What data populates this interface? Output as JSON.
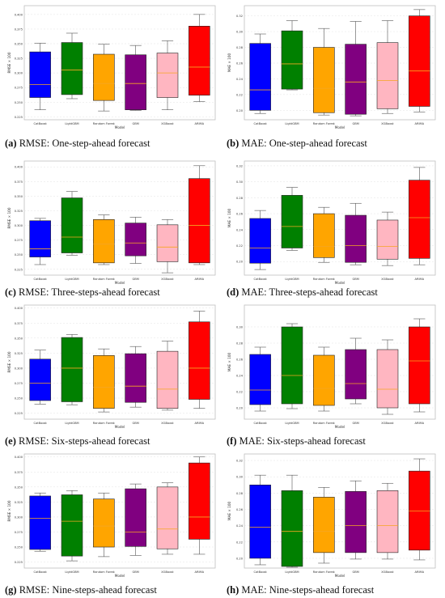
{
  "categories": [
    "CatBoost",
    "LightGBM",
    "Random Forest",
    "GBM",
    "XGBoost",
    "ARIMA"
  ],
  "colors": [
    "#0000ff",
    "#008000",
    "#ffa500",
    "#800080",
    "#ffb6c1",
    "#ff0000"
  ],
  "median_color": "#f5a623",
  "chart_data": [
    {
      "type": "box",
      "panel": "a",
      "caption_tag": "(a)",
      "caption_text": "RMSE: One-step-ahead forecast",
      "xlabel": "Model",
      "ylabel": "RMSE × 100",
      "ylim": [
        0.22,
        0.415
      ],
      "yticks": [
        0.225,
        0.25,
        0.275,
        0.3,
        0.325,
        0.35,
        0.375,
        0.4
      ],
      "ytick_labels": [
        "0.225",
        "0.250",
        "0.275",
        "0.300",
        "0.325",
        "0.350",
        "0.375",
        "0.400"
      ],
      "boxes": [
        {
          "min": 0.237,
          "q1": 0.258,
          "median": 0.28,
          "q3": 0.336,
          "max": 0.351
        },
        {
          "min": 0.256,
          "q1": 0.263,
          "median": 0.305,
          "q3": 0.352,
          "max": 0.368
        },
        {
          "min": 0.235,
          "q1": 0.253,
          "median": 0.282,
          "q3": 0.332,
          "max": 0.349
        },
        {
          "min": 0.236,
          "q1": 0.237,
          "median": 0.282,
          "q3": 0.331,
          "max": 0.347
        },
        {
          "min": 0.237,
          "q1": 0.258,
          "median": 0.3,
          "q3": 0.334,
          "max": 0.355
        },
        {
          "min": 0.251,
          "q1": 0.262,
          "median": 0.31,
          "q3": 0.38,
          "max": 0.4
        }
      ]
    },
    {
      "type": "box",
      "panel": "b",
      "caption_tag": "(b)",
      "caption_text": "MAE: One-step-ahead forecast",
      "xlabel": "Model",
      "ylabel": "MAE × 100",
      "ylim": [
        0.188,
        0.333
      ],
      "yticks": [
        0.2,
        0.22,
        0.24,
        0.26,
        0.28,
        0.3,
        0.32
      ],
      "ytick_labels": [
        "0.20",
        "0.22",
        "0.24",
        "0.26",
        "0.28",
        "0.30",
        "0.32"
      ],
      "boxes": [
        {
          "min": 0.196,
          "q1": 0.2,
          "median": 0.226,
          "q3": 0.285,
          "max": 0.297
        },
        {
          "min": 0.226,
          "q1": 0.227,
          "median": 0.259,
          "q3": 0.301,
          "max": 0.314
        },
        {
          "min": 0.194,
          "q1": 0.197,
          "median": 0.228,
          "q3": 0.28,
          "max": 0.304
        },
        {
          "min": 0.193,
          "q1": 0.195,
          "median": 0.236,
          "q3": 0.284,
          "max": 0.313
        },
        {
          "min": 0.196,
          "q1": 0.202,
          "median": 0.238,
          "q3": 0.286,
          "max": 0.314
        },
        {
          "min": 0.198,
          "q1": 0.205,
          "median": 0.25,
          "q3": 0.32,
          "max": 0.328
        }
      ]
    },
    {
      "type": "box",
      "panel": "c",
      "caption_tag": "(c)",
      "caption_text": "RMSE: Three-steps-ahead forecast",
      "xlabel": "Model",
      "ylabel": "RMSE × 100",
      "ylim": [
        0.215,
        0.41
      ],
      "yticks": [
        0.225,
        0.25,
        0.275,
        0.3,
        0.325,
        0.35,
        0.375,
        0.4
      ],
      "ytick_labels": [
        "0.225",
        "0.250",
        "0.275",
        "0.300",
        "0.325",
        "0.350",
        "0.375",
        "0.400"
      ],
      "boxes": [
        {
          "min": 0.233,
          "q1": 0.246,
          "median": 0.26,
          "q3": 0.308,
          "max": 0.312
        },
        {
          "min": 0.249,
          "q1": 0.253,
          "median": 0.28,
          "q3": 0.347,
          "max": 0.358
        },
        {
          "min": 0.233,
          "q1": 0.236,
          "median": 0.268,
          "q3": 0.31,
          "max": 0.318
        },
        {
          "min": 0.235,
          "q1": 0.248,
          "median": 0.27,
          "q3": 0.304,
          "max": 0.314
        },
        {
          "min": 0.219,
          "q1": 0.238,
          "median": 0.263,
          "q3": 0.301,
          "max": 0.31
        },
        {
          "min": 0.233,
          "q1": 0.236,
          "median": 0.3,
          "q3": 0.38,
          "max": 0.402
        }
      ]
    },
    {
      "type": "box",
      "panel": "d",
      "caption_tag": "(d)",
      "caption_text": "MAE: Three-steps-ahead forecast",
      "xlabel": "Model",
      "ylabel": "MAE × 100",
      "ylim": [
        0.183,
        0.326
      ],
      "yticks": [
        0.2,
        0.22,
        0.24,
        0.26,
        0.28,
        0.3,
        0.32
      ],
      "ytick_labels": [
        "0.20",
        "0.22",
        "0.24",
        "0.26",
        "0.28",
        "0.30",
        "0.32"
      ],
      "boxes": [
        {
          "min": 0.19,
          "q1": 0.198,
          "median": 0.217,
          "q3": 0.254,
          "max": 0.264
        },
        {
          "min": 0.214,
          "q1": 0.217,
          "median": 0.244,
          "q3": 0.283,
          "max": 0.293
        },
        {
          "min": 0.199,
          "q1": 0.205,
          "median": 0.219,
          "q3": 0.26,
          "max": 0.268
        },
        {
          "min": 0.196,
          "q1": 0.199,
          "median": 0.22,
          "q3": 0.258,
          "max": 0.273
        },
        {
          "min": 0.195,
          "q1": 0.203,
          "median": 0.219,
          "q3": 0.252,
          "max": 0.262
        },
        {
          "min": 0.196,
          "q1": 0.204,
          "median": 0.255,
          "q3": 0.302,
          "max": 0.318
        }
      ]
    },
    {
      "type": "box",
      "panel": "e",
      "caption_tag": "(e)",
      "caption_text": "RMSE: Six-steps-ahead forecast",
      "xlabel": "Model",
      "ylabel": "RMSE × 100",
      "ylim": [
        0.215,
        0.405
      ],
      "yticks": [
        0.225,
        0.25,
        0.275,
        0.3,
        0.325,
        0.35,
        0.375,
        0.4
      ],
      "ytick_labels": [
        "0.225",
        "0.250",
        "0.275",
        "0.300",
        "0.325",
        "0.350",
        "0.375",
        "0.400"
      ],
      "boxes": [
        {
          "min": 0.24,
          "q1": 0.246,
          "median": 0.275,
          "q3": 0.315,
          "max": 0.33
        },
        {
          "min": 0.239,
          "q1": 0.244,
          "median": 0.3,
          "q3": 0.351,
          "max": 0.356
        },
        {
          "min": 0.227,
          "q1": 0.233,
          "median": 0.268,
          "q3": 0.321,
          "max": 0.332
        },
        {
          "min": 0.235,
          "q1": 0.243,
          "median": 0.27,
          "q3": 0.324,
          "max": 0.336
        },
        {
          "min": 0.23,
          "q1": 0.233,
          "median": 0.265,
          "q3": 0.328,
          "max": 0.345
        },
        {
          "min": 0.233,
          "q1": 0.248,
          "median": 0.3,
          "q3": 0.377,
          "max": 0.395
        }
      ]
    },
    {
      "type": "box",
      "panel": "f",
      "caption_tag": "(f)",
      "caption_text": "MAE: Six-steps-ahead forecast",
      "xlabel": "Model",
      "ylabel": "MAE × 100",
      "ylim": [
        0.186,
        0.327
      ],
      "yticks": [
        0.2,
        0.22,
        0.24,
        0.26,
        0.28,
        0.3
      ],
      "ytick_labels": [
        "0.20",
        "0.22",
        "0.24",
        "0.26",
        "0.28",
        "0.30"
      ],
      "boxes": [
        {
          "min": 0.196,
          "q1": 0.204,
          "median": 0.222,
          "q3": 0.266,
          "max": 0.275
        },
        {
          "min": 0.199,
          "q1": 0.205,
          "median": 0.24,
          "q3": 0.3,
          "max": 0.304
        },
        {
          "min": 0.196,
          "q1": 0.203,
          "median": 0.224,
          "q3": 0.265,
          "max": 0.275
        },
        {
          "min": 0.205,
          "q1": 0.211,
          "median": 0.23,
          "q3": 0.272,
          "max": 0.286
        },
        {
          "min": 0.192,
          "q1": 0.2,
          "median": 0.223,
          "q3": 0.272,
          "max": 0.284
        },
        {
          "min": 0.195,
          "q1": 0.205,
          "median": 0.258,
          "q3": 0.3,
          "max": 0.31
        }
      ]
    },
    {
      "type": "box",
      "panel": "g",
      "caption_tag": "(g)",
      "caption_text": "RMSE: Nine-steps-ahead forecast",
      "xlabel": "Model",
      "ylabel": "RMSE × 100",
      "ylim": [
        0.215,
        0.405
      ],
      "yticks": [
        0.225,
        0.25,
        0.275,
        0.3,
        0.325,
        0.35,
        0.375,
        0.4
      ],
      "ytick_labels": [
        "0.225",
        "0.250",
        "0.275",
        "0.300",
        "0.325",
        "0.350",
        "0.375",
        "0.400"
      ],
      "boxes": [
        {
          "min": 0.243,
          "q1": 0.246,
          "median": 0.298,
          "q3": 0.335,
          "max": 0.34
        },
        {
          "min": 0.227,
          "q1": 0.235,
          "median": 0.293,
          "q3": 0.337,
          "max": 0.344
        },
        {
          "min": 0.234,
          "q1": 0.25,
          "median": 0.285,
          "q3": 0.33,
          "max": 0.34
        },
        {
          "min": 0.236,
          "q1": 0.251,
          "median": 0.275,
          "q3": 0.347,
          "max": 0.355
        },
        {
          "min": 0.238,
          "q1": 0.247,
          "median": 0.28,
          "q3": 0.35,
          "max": 0.357
        },
        {
          "min": 0.238,
          "q1": 0.263,
          "median": 0.3,
          "q3": 0.39,
          "max": 0.4
        }
      ]
    },
    {
      "type": "box",
      "panel": "h",
      "caption_tag": "(h)",
      "caption_text": "MAE: Nine-steps-ahead forecast",
      "xlabel": "Model",
      "ylabel": "MAE × 100",
      "ylim": [
        0.188,
        0.328
      ],
      "yticks": [
        0.2,
        0.22,
        0.24,
        0.26,
        0.28,
        0.3,
        0.32
      ],
      "ytick_labels": [
        "0.20",
        "0.22",
        "0.24",
        "0.26",
        "0.28",
        "0.30",
        "0.32"
      ],
      "boxes": [
        {
          "min": 0.192,
          "q1": 0.2,
          "median": 0.238,
          "q3": 0.29,
          "max": 0.302
        },
        {
          "min": 0.189,
          "q1": 0.19,
          "median": 0.233,
          "q3": 0.283,
          "max": 0.302
        },
        {
          "min": 0.194,
          "q1": 0.207,
          "median": 0.233,
          "q3": 0.275,
          "max": 0.287
        },
        {
          "min": 0.199,
          "q1": 0.207,
          "median": 0.24,
          "q3": 0.282,
          "max": 0.295
        },
        {
          "min": 0.199,
          "q1": 0.207,
          "median": 0.24,
          "q3": 0.283,
          "max": 0.292
        },
        {
          "min": 0.198,
          "q1": 0.21,
          "median": 0.258,
          "q3": 0.307,
          "max": 0.322
        }
      ]
    }
  ]
}
